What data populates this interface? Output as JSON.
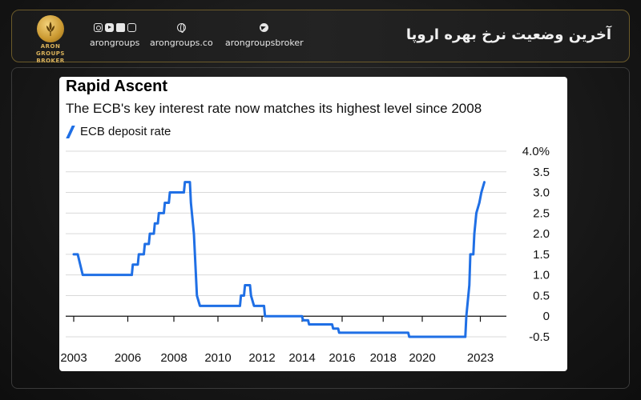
{
  "header": {
    "title": "آخرین وضعیت نرخ بهره اروپا",
    "logo_text": [
      "ARON",
      "GROUPS",
      "BROKER"
    ],
    "social": [
      {
        "icons": [
          "instagram-icon",
          "youtube-icon",
          "linkedin-icon",
          "app-icon"
        ],
        "label": "arongroups"
      },
      {
        "icons": [
          "globe-icon"
        ],
        "label": "arongroups.co"
      },
      {
        "icons": [
          "telegram-icon"
        ],
        "label": "arongroupsbroker"
      }
    ],
    "accent": "#c9972f"
  },
  "chart_data": {
    "type": "line",
    "title": "Rapid Ascent",
    "subtitle": "The ECB's key interest rate now matches its highest level since 2008",
    "legend_position": "top-left",
    "series": [
      {
        "name": "ECB deposit rate",
        "color": "#1f6fe5",
        "points": [
          [
            2003.0,
            1.5
          ],
          [
            2003.2,
            1.5
          ],
          [
            2003.45,
            1.0
          ],
          [
            2005.9,
            1.0
          ],
          [
            2005.95,
            1.25
          ],
          [
            2006.2,
            1.25
          ],
          [
            2006.25,
            1.5
          ],
          [
            2006.5,
            1.5
          ],
          [
            2006.55,
            1.75
          ],
          [
            2006.75,
            1.75
          ],
          [
            2006.8,
            2.0
          ],
          [
            2007.0,
            2.0
          ],
          [
            2007.05,
            2.25
          ],
          [
            2007.2,
            2.25
          ],
          [
            2007.25,
            2.5
          ],
          [
            2007.5,
            2.5
          ],
          [
            2007.55,
            2.75
          ],
          [
            2007.75,
            2.75
          ],
          [
            2007.8,
            3.0
          ],
          [
            2008.5,
            3.0
          ],
          [
            2008.55,
            3.25
          ],
          [
            2008.8,
            3.25
          ],
          [
            2008.85,
            2.75
          ],
          [
            2009.0,
            2.0
          ],
          [
            2009.1,
            1.0
          ],
          [
            2009.15,
            0.5
          ],
          [
            2009.3,
            0.25
          ],
          [
            2011.3,
            0.25
          ],
          [
            2011.35,
            0.5
          ],
          [
            2011.5,
            0.5
          ],
          [
            2011.55,
            0.75
          ],
          [
            2011.8,
            0.75
          ],
          [
            2011.85,
            0.5
          ],
          [
            2012.0,
            0.25
          ],
          [
            2012.5,
            0.25
          ],
          [
            2012.55,
            0.0
          ],
          [
            2014.4,
            0.0
          ],
          [
            2014.45,
            -0.1
          ],
          [
            2014.7,
            -0.1
          ],
          [
            2014.75,
            -0.2
          ],
          [
            2015.9,
            -0.2
          ],
          [
            2015.95,
            -0.3
          ],
          [
            2016.2,
            -0.3
          ],
          [
            2016.25,
            -0.4
          ],
          [
            2019.7,
            -0.4
          ],
          [
            2019.75,
            -0.5
          ],
          [
            2022.55,
            -0.5
          ],
          [
            2022.6,
            0.0
          ],
          [
            2022.75,
            0.75
          ],
          [
            2022.8,
            1.5
          ],
          [
            2022.95,
            1.5
          ],
          [
            2023.0,
            2.0
          ],
          [
            2023.1,
            2.5
          ],
          [
            2023.25,
            2.75
          ],
          [
            2023.35,
            3.0
          ],
          [
            2023.5,
            3.25
          ]
        ]
      }
    ],
    "x_ticks": [
      "2003",
      "2006",
      "2008",
      "2010",
      "2012",
      "2014",
      "2016",
      "2018",
      "2020",
      "2023"
    ],
    "x_tick_values": [
      2003,
      2005.7,
      2008.0,
      2010.2,
      2012.4,
      2014.4,
      2016.4,
      2018.45,
      2020.4,
      2023.3
    ],
    "y_ticks": [
      "4.0%",
      "3.5",
      "3.0",
      "2.5",
      "2.0",
      "1.5",
      "1.0",
      "0.5",
      "0",
      "-0.5"
    ],
    "y_tick_values": [
      4.0,
      3.5,
      3.0,
      2.5,
      2.0,
      1.5,
      1.0,
      0.5,
      0.0,
      -0.5
    ],
    "ylim": [
      -0.5,
      4.0
    ],
    "xlim": [
      2002.6,
      2024.6
    ],
    "grid": true
  }
}
